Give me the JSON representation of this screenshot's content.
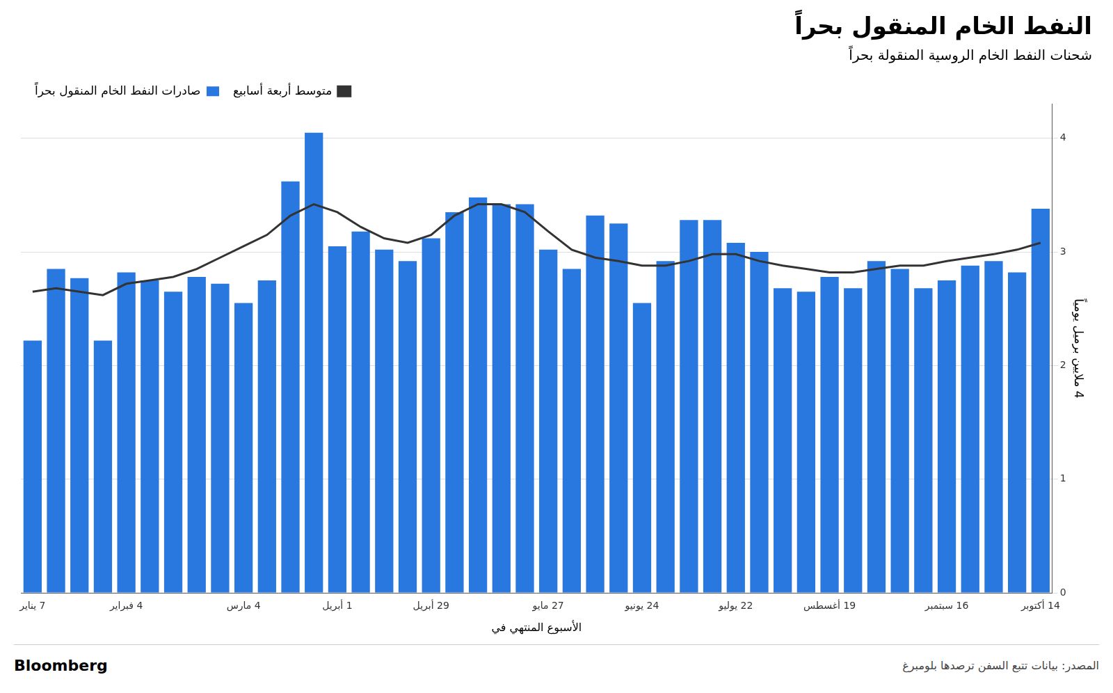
{
  "chart_data": {
    "type": "bar",
    "title": "النفط الخام المنقول بحراً",
    "subtitle": "شحنات النفط الخام الروسية المنقولة بحراً",
    "xlabel": "الأسبوع المنتهي في",
    "ylabel": "4 ملايين برميل يومياً",
    "annotations": [
      "Bloomberg",
      "المصدر: بيانات تتبع السفن ترصدها بلومبرغ"
    ],
    "categories": [
      "7 يناير",
      null,
      null,
      null,
      "4 فبراير",
      null,
      null,
      null,
      null,
      "4 مارس",
      null,
      null,
      null,
      "1 أبريل",
      null,
      null,
      null,
      "29 أبريل",
      null,
      null,
      null,
      null,
      "27 مايو",
      null,
      null,
      null,
      "24 يونيو",
      null,
      null,
      null,
      "22 يوليو",
      null,
      null,
      null,
      "19 أغسطس",
      null,
      null,
      null,
      null,
      "16 سبتمبر",
      null,
      null,
      null,
      "14 أكتوبر"
    ],
    "series": [
      {
        "name": "صادرات النفط الخام المنقول بحراً",
        "type": "bar",
        "color": "#2878e0",
        "values": [
          2.22,
          2.85,
          2.77,
          2.22,
          2.82,
          2.75,
          2.65,
          2.78,
          2.72,
          2.55,
          2.75,
          3.62,
          4.05,
          3.05,
          3.18,
          3.02,
          2.92,
          3.12,
          3.35,
          3.48,
          3.42,
          3.42,
          3.02,
          2.85,
          3.32,
          3.25,
          2.55,
          2.92,
          3.28,
          3.28,
          3.08,
          3.0,
          2.68,
          2.65,
          2.78,
          2.68,
          2.92,
          2.85,
          2.68,
          2.75,
          2.88,
          2.92,
          2.82,
          3.38
        ]
      },
      {
        "name": "متوسط أربعة أسابيع",
        "type": "line",
        "color": "#333333",
        "values": [
          2.65,
          2.68,
          2.65,
          2.62,
          2.72,
          2.75,
          2.78,
          2.85,
          2.95,
          3.05,
          3.15,
          3.32,
          3.42,
          3.35,
          3.22,
          3.12,
          3.08,
          3.15,
          3.32,
          3.42,
          3.42,
          3.35,
          3.18,
          3.02,
          2.95,
          2.92,
          2.88,
          2.88,
          2.92,
          2.98,
          2.98,
          2.92,
          2.88,
          2.85,
          2.82,
          2.82,
          2.85,
          2.88,
          2.88,
          2.92,
          2.95,
          2.98,
          3.02,
          3.08
        ]
      }
    ],
    "ylim": [
      0,
      4.3
    ],
    "yticks": [
      0,
      1,
      2,
      3,
      4
    ],
    "grid": true,
    "legend": "top"
  }
}
